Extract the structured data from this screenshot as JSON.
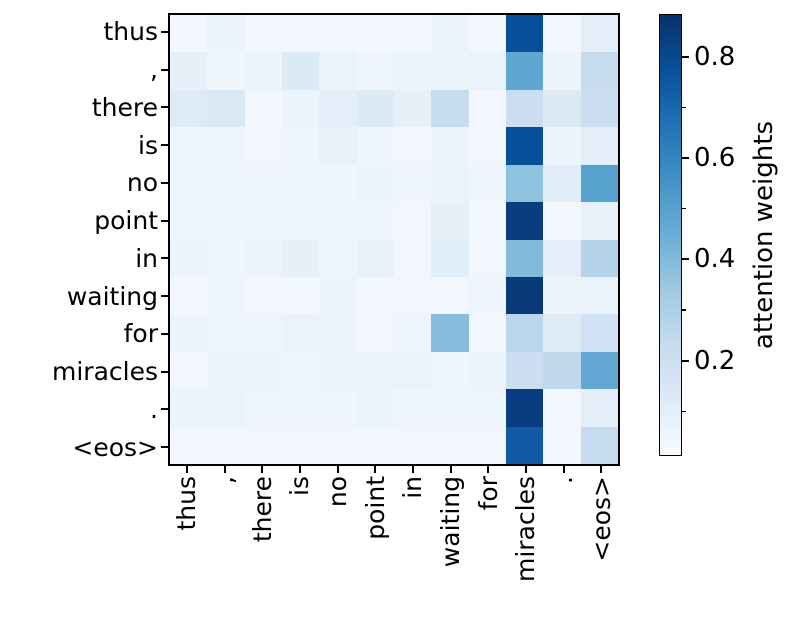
{
  "figure": {
    "background": "#ffffff",
    "text_color": "#000000"
  },
  "chart_data": {
    "type": "heatmap",
    "title": "",
    "xlabel": "",
    "ylabel": "",
    "x_categories": [
      "thus",
      ",",
      "there",
      "is",
      "no",
      "point",
      "in",
      "waiting",
      "for",
      "miracles",
      ".",
      "<eos>"
    ],
    "y_categories": [
      "thus",
      ",",
      "there",
      "is",
      "no",
      "point",
      "in",
      "waiting",
      "for",
      "miracles",
      ".",
      "<eos>"
    ],
    "values": [
      [
        0.03,
        0.06,
        0.03,
        0.03,
        0.04,
        0.03,
        0.04,
        0.06,
        0.04,
        0.78,
        0.04,
        0.1
      ],
      [
        0.09,
        0.05,
        0.06,
        0.13,
        0.07,
        0.05,
        0.06,
        0.06,
        0.07,
        0.48,
        0.06,
        0.22
      ],
      [
        0.12,
        0.14,
        0.04,
        0.06,
        0.1,
        0.13,
        0.09,
        0.22,
        0.04,
        0.21,
        0.13,
        0.21
      ],
      [
        0.05,
        0.05,
        0.04,
        0.05,
        0.08,
        0.05,
        0.04,
        0.06,
        0.04,
        0.78,
        0.06,
        0.1
      ],
      [
        0.05,
        0.05,
        0.05,
        0.05,
        0.05,
        0.06,
        0.05,
        0.07,
        0.05,
        0.37,
        0.11,
        0.5
      ],
      [
        0.05,
        0.05,
        0.05,
        0.05,
        0.05,
        0.05,
        0.04,
        0.09,
        0.04,
        0.84,
        0.04,
        0.08
      ],
      [
        0.06,
        0.05,
        0.06,
        0.09,
        0.05,
        0.08,
        0.04,
        0.11,
        0.04,
        0.4,
        0.1,
        0.28
      ],
      [
        0.04,
        0.05,
        0.04,
        0.04,
        0.06,
        0.04,
        0.04,
        0.04,
        0.05,
        0.85,
        0.06,
        0.07
      ],
      [
        0.06,
        0.05,
        0.05,
        0.07,
        0.06,
        0.04,
        0.05,
        0.39,
        0.04,
        0.26,
        0.12,
        0.19
      ],
      [
        0.04,
        0.06,
        0.06,
        0.05,
        0.06,
        0.06,
        0.07,
        0.05,
        0.06,
        0.21,
        0.25,
        0.47
      ],
      [
        0.06,
        0.06,
        0.05,
        0.05,
        0.05,
        0.06,
        0.05,
        0.05,
        0.05,
        0.84,
        0.04,
        0.1
      ],
      [
        0.04,
        0.04,
        0.04,
        0.04,
        0.04,
        0.04,
        0.04,
        0.04,
        0.04,
        0.74,
        0.04,
        0.23
      ]
    ],
    "value_range": [
      0.012,
      0.884
    ],
    "colormap": "Blues",
    "colormap_stops": [
      "#f7fbff",
      "#deebf7",
      "#c6dbef",
      "#9ecae1",
      "#6baed6",
      "#4292c6",
      "#2171b5",
      "#08519c",
      "#08306b"
    ],
    "colorbar_label": "attention weights",
    "colorbar_major_ticks": [
      "0.2",
      "0.4",
      "0.6",
      "0.8"
    ],
    "colorbar_minor_ticks": [
      "0.1",
      "0.3",
      "0.5",
      "0.7"
    ],
    "legend_position": "right",
    "grid": "off"
  }
}
